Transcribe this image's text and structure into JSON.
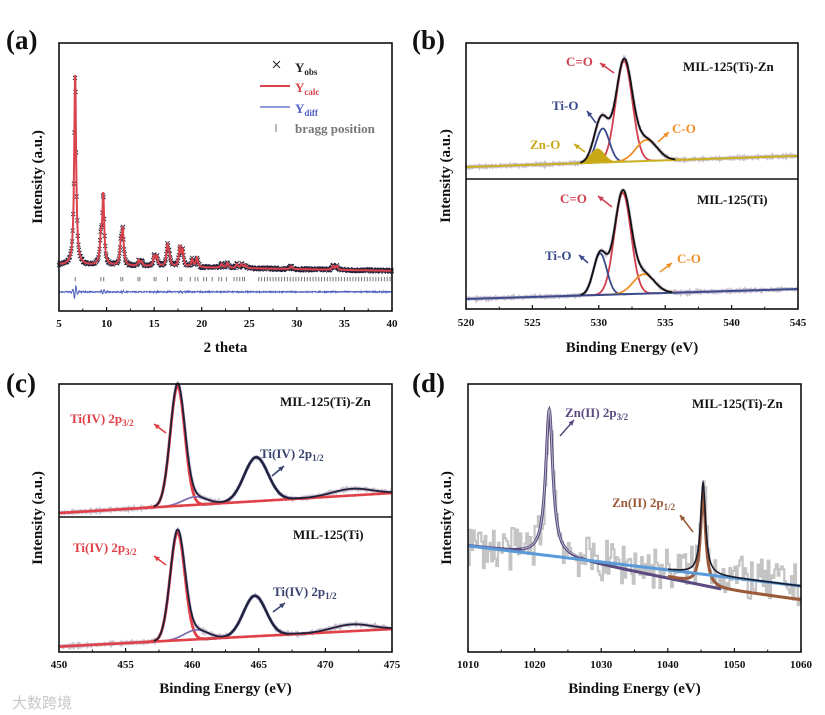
{
  "watermark": "大数跨境",
  "chart_data": [
    {
      "panel_label": "(a)",
      "type": "line",
      "xlabel": "2 theta",
      "ylabel": "Intensity (a.u.)",
      "xlim": [
        5,
        40
      ],
      "xticks": [
        5,
        10,
        15,
        20,
        25,
        30,
        35,
        40
      ],
      "ylim": [
        -0.2,
        1.2
      ],
      "legend": {
        "placement": "top-right",
        "entries": [
          {
            "symbol": "×",
            "label": "Y",
            "sub": "obs",
            "color": "#222222"
          },
          {
            "symbol": "line",
            "label": "Y",
            "sub": "calc",
            "color": "#d9434b"
          },
          {
            "symbol": "line",
            "label": "Y",
            "sub": "diff",
            "color": "#4f5fc0"
          },
          {
            "symbol": "|",
            "label": "bragg position",
            "sub": "",
            "color": "#777777"
          }
        ]
      },
      "background": [
        [
          5,
          0.04
        ],
        [
          40,
          0.01
        ]
      ],
      "peak_width": 0.12,
      "peaks": [
        {
          "center": 6.7,
          "height": 1.0
        },
        {
          "center": 9.4,
          "height": 0.12
        },
        {
          "center": 9.65,
          "height": 0.36
        },
        {
          "center": 11.5,
          "height": 0.1
        },
        {
          "center": 11.7,
          "height": 0.18
        },
        {
          "center": 13.4,
          "height": 0.03
        },
        {
          "center": 13.7,
          "height": 0.02
        },
        {
          "center": 15.0,
          "height": 0.05
        },
        {
          "center": 15.3,
          "height": 0.05
        },
        {
          "center": 16.4,
          "height": 0.11
        },
        {
          "center": 16.6,
          "height": 0.05
        },
        {
          "center": 17.7,
          "height": 0.1
        },
        {
          "center": 18.0,
          "height": 0.08
        },
        {
          "center": 19.0,
          "height": 0.04
        },
        {
          "center": 19.5,
          "height": 0.05
        },
        {
          "center": 22.1,
          "height": 0.02
        },
        {
          "center": 22.7,
          "height": 0.025
        },
        {
          "center": 23.7,
          "height": 0.02
        },
        {
          "center": 24.2,
          "height": 0.02
        },
        {
          "center": 24.6,
          "height": 0.015
        },
        {
          "center": 29.4,
          "height": 0.015
        },
        {
          "center": 33.8,
          "height": 0.02
        },
        {
          "center": 34.2,
          "height": 0.02
        }
      ],
      "diff_offset": -0.1,
      "bragg_positions": [
        6.7,
        9.4,
        9.7,
        11.5,
        11.7,
        13.3,
        13.5,
        15.0,
        15.2,
        16.4,
        17.7,
        17.9,
        18.8,
        19.3,
        19.6,
        20.2,
        20.5,
        21.1,
        21.8,
        22.1,
        22.6,
        23.4,
        23.7,
        24.0,
        24.3,
        24.5,
        26.0,
        26.3,
        26.6,
        26.9,
        27.2,
        27.5,
        27.8,
        28.1,
        28.4,
        28.7,
        29.0,
        29.3,
        29.6,
        29.9,
        30.2,
        30.5,
        30.8,
        31.1,
        31.4,
        31.7,
        32.0,
        32.3,
        32.6,
        32.9,
        33.2,
        33.5,
        33.8,
        34.1,
        34.4,
        34.7,
        35.0,
        35.3,
        35.6,
        35.9,
        36.2,
        36.5,
        36.8,
        37.1,
        37.4,
        37.7,
        38.0,
        38.3,
        38.6,
        38.9,
        39.2,
        39.5,
        39.8
      ]
    },
    {
      "panel_label": "(b)",
      "type": "line",
      "xlabel": "Binding Energy (eV)",
      "ylabel": "Intensity (a.u.)",
      "xlim": [
        520,
        545
      ],
      "xticks": [
        520,
        525,
        530,
        535,
        540,
        545
      ],
      "subplots": [
        {
          "sample": "MIL-125(Ti)-Zn",
          "ylim": [
            0,
            1
          ],
          "background": [
            [
              520,
              0.088
            ],
            [
              545,
              0.17
            ]
          ],
          "background_color": "#c8b020",
          "components": [
            {
              "label": "C=O",
              "center": 531.9,
              "height": 0.74,
              "width": 0.62,
              "color": "#d04050"
            },
            {
              "label": "Ti-O",
              "center": 530.3,
              "height": 0.25,
              "width": 0.5,
              "color": "#3a4a8a"
            },
            {
              "label": "Zn-O",
              "center": 529.9,
              "height": 0.1,
              "width": 0.5,
              "color": "#c9a818",
              "filled": true
            },
            {
              "label": "C-O",
              "center": 533.6,
              "height": 0.155,
              "width": 0.8,
              "color": "#f0902a"
            }
          ]
        },
        {
          "sample": "MIL-125(Ti)",
          "ylim": [
            0,
            1
          ],
          "background": [
            [
              520,
              0.077
            ],
            [
              545,
              0.154
            ]
          ],
          "background_color": "#3a4a8a",
          "components": [
            {
              "label": "C=O",
              "center": 531.8,
              "height": 0.78,
              "width": 0.62,
              "color": "#d04050"
            },
            {
              "label": "Ti-O",
              "center": 530.1,
              "height": 0.32,
              "width": 0.5,
              "color": "#3a4a8a"
            },
            {
              "label": "C-O",
              "center": 533.4,
              "height": 0.15,
              "width": 0.8,
              "color": "#f0902a"
            }
          ]
        }
      ]
    },
    {
      "panel_label": "(c)",
      "type": "line",
      "xlabel": "Binding Energy (eV)",
      "ylabel": "Intensity (a.u.)",
      "xlim": [
        450,
        475
      ],
      "xticks": [
        450,
        455,
        460,
        465,
        470,
        475
      ],
      "subplots": [
        {
          "sample": "MIL-125(Ti)-Zn",
          "ylim": [
            0,
            1
          ],
          "background": [
            [
              450,
              0.03
            ],
            [
              475,
              0.18
            ]
          ],
          "background_color": "#e04048",
          "components": [
            {
              "label": "Ti(IV) 2p",
              "sub": "3/2",
              "center": 458.9,
              "height": 0.9,
              "width": 0.55,
              "color": "#e04048"
            },
            {
              "label": "Ti(IV) 2p",
              "sub": "1/2",
              "center": 464.8,
              "height": 0.33,
              "width": 0.9,
              "color": "#3a4470"
            },
            {
              "label": "",
              "center": 460.2,
              "height": 0.06,
              "width": 0.9,
              "color": "#8070b0"
            },
            {
              "label": "",
              "center": 472.0,
              "height": 0.05,
              "width": 1.5,
              "color": "#d8a0a8"
            }
          ]
        },
        {
          "sample": "MIL-125(Ti)",
          "ylim": [
            0,
            1
          ],
          "background": [
            [
              450,
              0.04
            ],
            [
              475,
              0.17
            ]
          ],
          "background_color": "#e04048",
          "components": [
            {
              "label": "Ti(IV) 2p",
              "sub": "3/2",
              "center": 458.9,
              "height": 0.8,
              "width": 0.55,
              "color": "#e04048"
            },
            {
              "label": "Ti(IV) 2p",
              "sub": "1/2",
              "center": 464.7,
              "height": 0.3,
              "width": 0.85,
              "color": "#3a4470"
            },
            {
              "label": "",
              "center": 460.3,
              "height": 0.07,
              "width": 0.9,
              "color": "#8070b0"
            },
            {
              "label": "",
              "center": 472.0,
              "height": 0.05,
              "width": 1.5,
              "color": "#d8a0a8"
            }
          ]
        }
      ]
    },
    {
      "panel_label": "(d)",
      "type": "line",
      "xlabel": "Binding Energy (eV)",
      "ylabel": "Intensity (a.u.)",
      "xlim": [
        1010,
        1060
      ],
      "xticks": [
        1010,
        1020,
        1030,
        1040,
        1050,
        1060
      ],
      "ylim": [
        0,
        1
      ],
      "sample": "MIL-125(Ti)-Zn",
      "baseline": [
        [
          1010,
          0.396
        ],
        [
          1060,
          0.246
        ]
      ],
      "baseline_color": "#5a9ad8",
      "noise_amplitude": 0.08,
      "components": [
        {
          "label": "Zn(II) 2p",
          "sub": "3/2",
          "center": 1022.2,
          "height": 0.545,
          "width": 0.65,
          "color": "#5a4a80",
          "background": [
            [
              1010,
              0.396
            ],
            [
              1025,
              0.35
            ],
            [
              1048,
              0.235
            ]
          ]
        },
        {
          "label": "Zn(II) 2p",
          "sub": "1/2",
          "center": 1045.3,
          "height": 0.34,
          "width": 0.45,
          "color": "#9a5a3a",
          "background": [
            [
              1040,
              0.28
            ],
            [
              1048,
              0.235
            ],
            [
              1060,
              0.195
            ]
          ]
        }
      ]
    }
  ]
}
